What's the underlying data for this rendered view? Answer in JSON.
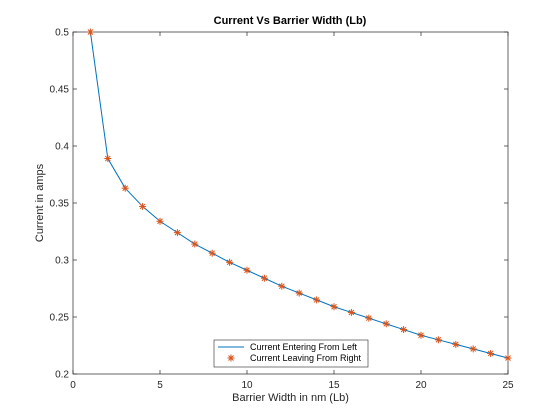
{
  "chart_data": {
    "type": "line",
    "title": "Current Vs Barrier Width (Lb)",
    "xlabel": "Barrier Width in nm (Lb)",
    "ylabel": "Current in amps",
    "xlim": [
      0,
      25
    ],
    "ylim": [
      0.2,
      0.5
    ],
    "xticks": [
      0,
      5,
      10,
      15,
      20,
      25
    ],
    "yticks": [
      0.2,
      0.25,
      0.3,
      0.35,
      0.4,
      0.45,
      0.5
    ],
    "xtick_labels": [
      "0",
      "5",
      "10",
      "15",
      "20",
      "25"
    ],
    "ytick_labels": [
      "0.2",
      "0.25",
      "0.3",
      "0.35",
      "0.4",
      "0.45",
      "0.5"
    ],
    "grid": false,
    "legend_position": "bottom-center",
    "x": [
      1,
      2,
      3,
      4,
      5,
      6,
      7,
      8,
      9,
      10,
      11,
      12,
      13,
      14,
      15,
      16,
      17,
      18,
      19,
      20,
      21,
      22,
      23,
      24,
      25
    ],
    "series": [
      {
        "name": "Current Entering From Left",
        "style": "line",
        "color": "#0072BD",
        "values": [
          0.5,
          0.389,
          0.363,
          0.347,
          0.334,
          0.324,
          0.314,
          0.306,
          0.298,
          0.291,
          0.284,
          0.277,
          0.271,
          0.265,
          0.259,
          0.254,
          0.249,
          0.244,
          0.239,
          0.234,
          0.23,
          0.226,
          0.222,
          0.218,
          0.214
        ]
      },
      {
        "name": "Current Leaving From Right",
        "style": "marker",
        "marker": "*",
        "color": "#D95319",
        "values": [
          0.5,
          0.389,
          0.363,
          0.347,
          0.334,
          0.324,
          0.314,
          0.306,
          0.298,
          0.291,
          0.284,
          0.277,
          0.271,
          0.265,
          0.259,
          0.254,
          0.249,
          0.244,
          0.239,
          0.234,
          0.23,
          0.226,
          0.222,
          0.218,
          0.214
        ]
      }
    ]
  }
}
